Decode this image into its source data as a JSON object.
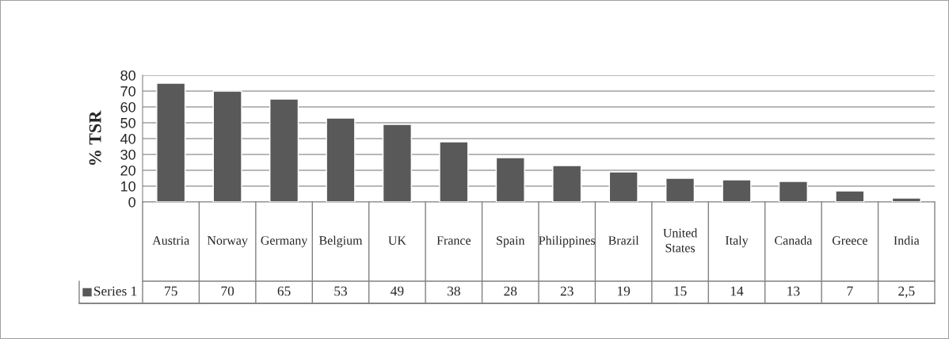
{
  "chart_data": {
    "type": "bar",
    "ylabel": "% TSR",
    "categories": [
      "Austria",
      "Norway",
      "Germany",
      "Belgium",
      "UK",
      "France",
      "Spain",
      "Philippines",
      "Brazil",
      "United States",
      "Italy",
      "Canada",
      "Greece",
      "India"
    ],
    "series": [
      {
        "name": "Series 1",
        "color": "#595959",
        "values": [
          75,
          70,
          65,
          53,
          49,
          38,
          28,
          23,
          19,
          15,
          14,
          13,
          7,
          2.5
        ],
        "value_labels": [
          "75",
          "70",
          "65",
          "53",
          "49",
          "38",
          "28",
          "23",
          "19",
          "15",
          "14",
          "13",
          "7",
          "2,5"
        ]
      }
    ],
    "ylim": [
      0,
      80
    ],
    "yticks": [
      0,
      10,
      20,
      30,
      40,
      50,
      60,
      70,
      80
    ],
    "grid": "y",
    "legend": "bottom"
  }
}
